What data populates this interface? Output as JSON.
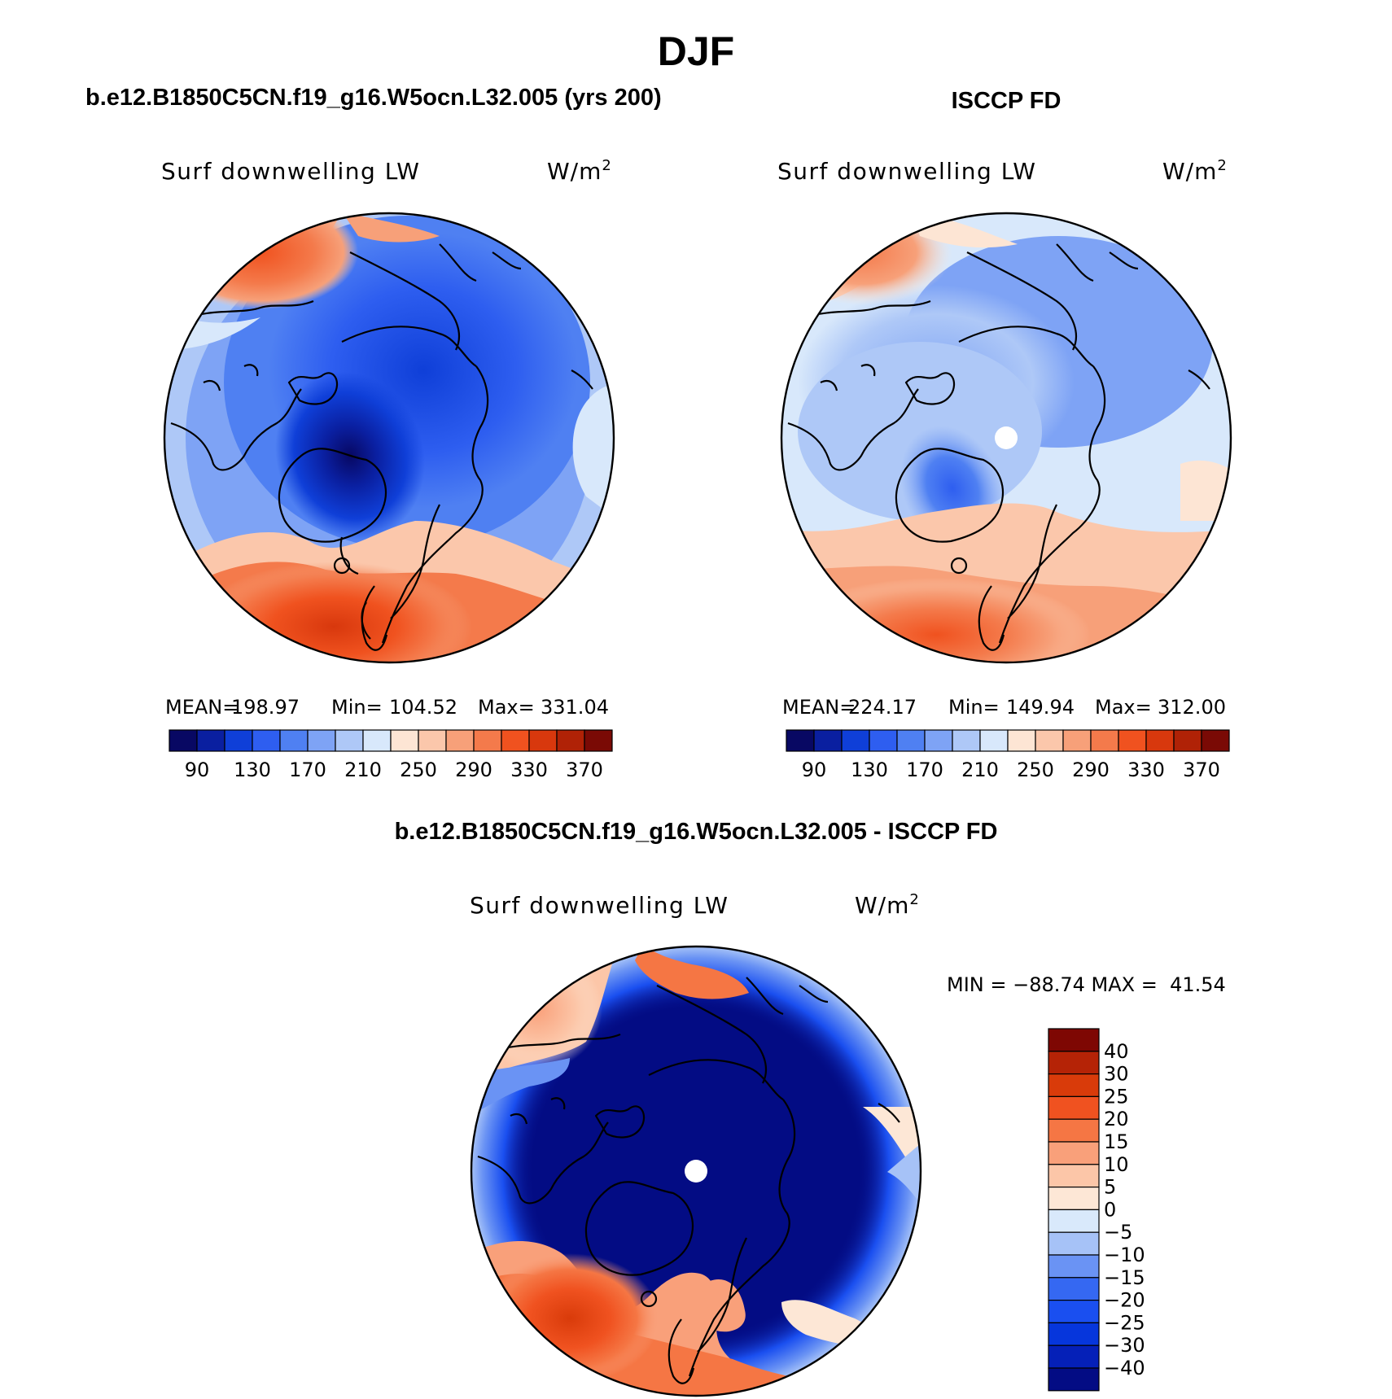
{
  "figure": {
    "season": "DJF",
    "colors": {
      "abs_palette": [
        "#080863",
        "#0a1fa0",
        "#0f3fd8",
        "#2e5ef0",
        "#4f80f2",
        "#7ea3f5",
        "#aec8f7",
        "#d8e8fb",
        "#fde5d4",
        "#fbc7ab",
        "#f7a079",
        "#f47a4b",
        "#f0521f",
        "#d8380d",
        "#b02206",
        "#7a0a05"
      ],
      "diff_palette": [
        "#030c84",
        "#0520b8",
        "#0636dc",
        "#1a4ff0",
        "#3568f2",
        "#6a93f4",
        "#a6c2f7",
        "#d9e9fb",
        "#fde7d6",
        "#fcc6a8",
        "#f9a07a",
        "#f57644",
        "#f05220",
        "#d93b0a",
        "#b52306",
        "#7e0703"
      ],
      "coast": "#000000",
      "pole_hole": "#ffffff"
    }
  },
  "panels": [
    {
      "header": "b.e12.B1850C5CN.f19_g16.W5ocn.L32.005 (yrs 200)",
      "variable": "Surf downwelling LW",
      "units": "W/m",
      "units_sup": "2",
      "stats": {
        "mean_label": "MEAN=",
        "mean": "198.97",
        "min_label": "Min=",
        "min": "104.52",
        "max_label": "Max=",
        "max": "331.04"
      },
      "colorbar_ticks": [
        "90",
        "130",
        "170",
        "210",
        "250",
        "290",
        "330",
        "370"
      ]
    },
    {
      "header": "ISCCP FD",
      "variable": "Surf downwelling LW",
      "units": "W/m",
      "units_sup": "2",
      "stats": {
        "mean_label": "MEAN=",
        "mean": "224.17",
        "min_label": "Min=",
        "min": "149.94",
        "max_label": "Max=",
        "max": "312.00"
      },
      "colorbar_ticks": [
        "90",
        "130",
        "170",
        "210",
        "250",
        "290",
        "330",
        "370"
      ]
    },
    {
      "header": "b.e12.B1850C5CN.f19_g16.W5ocn.L32.005 - ISCCP FD",
      "variable": "Surf downwelling LW",
      "units": "W/m",
      "units_sup": "2",
      "stats_line": "MIN = −88.74 MAX =  41.54",
      "colorbar_ticks": [
        "40",
        "30",
        "25",
        "20",
        "15",
        "10",
        "5",
        "0",
        "−5",
        "−10",
        "−15",
        "−20",
        "−25",
        "−30",
        "−40"
      ]
    }
  ],
  "chart_data": [
    {
      "type": "heatmap",
      "projection": "north-polar-stereographic",
      "title": "Surf downwelling LW",
      "dataset": "b.e12.B1850C5CN.f19_g16.W5ocn.L32.005 (yrs 200)",
      "units": "W/m2",
      "mean": 198.97,
      "min": 104.52,
      "max": 331.04,
      "contour_levels": [
        90,
        110,
        130,
        150,
        170,
        190,
        210,
        230,
        250,
        270,
        290,
        310,
        330,
        350,
        370
      ],
      "colorbar_labels": [
        90,
        130,
        170,
        210,
        250,
        290,
        330,
        370
      ]
    },
    {
      "type": "heatmap",
      "projection": "north-polar-stereographic",
      "title": "Surf downwelling LW",
      "dataset": "ISCCP FD",
      "units": "W/m2",
      "mean": 224.17,
      "min": 149.94,
      "max": 312.0,
      "contour_levels": [
        90,
        110,
        130,
        150,
        170,
        190,
        210,
        230,
        250,
        270,
        290,
        310,
        330,
        350,
        370
      ],
      "colorbar_labels": [
        90,
        130,
        170,
        210,
        250,
        290,
        330,
        370
      ]
    },
    {
      "type": "heatmap",
      "projection": "north-polar-stereographic",
      "title": "Surf downwelling LW",
      "dataset": "b.e12.B1850C5CN.f19_g16.W5ocn.L32.005 - ISCCP FD",
      "units": "W/m2",
      "min": -88.74,
      "max": 41.54,
      "contour_levels": [
        -40,
        -30,
        -25,
        -20,
        -15,
        -10,
        -5,
        0,
        5,
        10,
        15,
        20,
        25,
        30,
        40
      ],
      "colorbar_labels": [
        40,
        30,
        25,
        20,
        15,
        10,
        5,
        0,
        -5,
        -10,
        -15,
        -20,
        -25,
        -30,
        -40
      ]
    }
  ]
}
